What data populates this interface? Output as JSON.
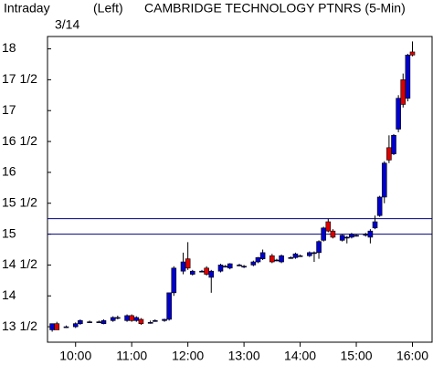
{
  "chart_data": {
    "type": "candlestick",
    "title": "CAMBRIDGE TECHNOLOGY PTNRS  (5-Min)",
    "period": "Intraday",
    "date": "3/14",
    "axis_side": "(Left)",
    "up_color": "#0000cc",
    "down_color": "#dd0000",
    "reference_color": "#000080",
    "reference_lines": [
      15.25,
      15
    ],
    "xlim": [
      570,
      981
    ],
    "ylim": [
      13.25,
      18.2
    ],
    "xticks": [
      {
        "value": 600,
        "label": "10:00"
      },
      {
        "value": 660,
        "label": "11:00"
      },
      {
        "value": 720,
        "label": "12:00"
      },
      {
        "value": 780,
        "label": "13:00"
      },
      {
        "value": 840,
        "label": "14:00"
      },
      {
        "value": 900,
        "label": "15:00"
      },
      {
        "value": 960,
        "label": "16:00"
      }
    ],
    "yticks": [
      {
        "value": 13.5,
        "label": "13 1/2"
      },
      14,
      {
        "value": 14.5,
        "label": "14 1/2"
      },
      15,
      {
        "value": 15.5,
        "label": "15 1/2"
      },
      16,
      {
        "value": 16.5,
        "label": "16 1/2"
      },
      17,
      {
        "value": 17.5,
        "label": "17 1/2"
      },
      18
    ],
    "x": [
      575,
      580,
      590,
      600,
      605,
      615,
      625,
      630,
      640,
      645,
      655,
      660,
      665,
      670,
      680,
      685,
      695,
      700,
      705,
      715,
      720,
      725,
      735,
      740,
      745,
      755,
      760,
      765,
      775,
      780,
      790,
      795,
      800,
      810,
      815,
      820,
      830,
      835,
      840,
      850,
      855,
      860,
      865,
      870,
      875,
      885,
      890,
      895,
      900,
      910,
      915,
      920,
      925,
      930,
      935,
      940,
      945,
      950,
      955,
      960
    ],
    "open": [
      13.45,
      13.55,
      13.5,
      13.5,
      13.55,
      13.58,
      13.58,
      13.55,
      13.6,
      13.65,
      13.6,
      13.68,
      13.6,
      13.62,
      13.57,
      13.6,
      13.6,
      13.62,
      14.05,
      14.4,
      14.6,
      14.35,
      14.4,
      14.45,
      14.3,
      14.4,
      14.48,
      14.45,
      14.5,
      14.48,
      14.5,
      14.55,
      14.6,
      14.65,
      14.58,
      14.55,
      14.62,
      14.62,
      14.65,
      14.65,
      14.7,
      14.7,
      14.9,
      15.2,
      15.05,
      14.9,
      14.95,
      14.95,
      14.98,
      14.98,
      14.95,
      15.1,
      15.3,
      15.6,
      16.4,
      16.3,
      16.7,
      17.5,
      17.2,
      17.95
    ],
    "high": [
      13.55,
      13.58,
      13.52,
      13.57,
      13.62,
      13.6,
      13.6,
      13.62,
      13.67,
      13.68,
      13.7,
      13.7,
      13.67,
      13.64,
      13.6,
      13.62,
      13.63,
      14.05,
      14.48,
      14.7,
      14.87,
      14.42,
      14.42,
      14.48,
      14.42,
      14.52,
      14.5,
      14.53,
      14.52,
      14.5,
      14.57,
      14.63,
      14.75,
      14.68,
      14.6,
      14.67,
      14.64,
      14.7,
      14.67,
      14.72,
      14.72,
      14.9,
      15.12,
      15.25,
      15.08,
      15.0,
      14.97,
      15.02,
      15.0,
      15.02,
      15.08,
      15.3,
      15.62,
      16.18,
      16.6,
      16.62,
      17.25,
      17.6,
      17.92,
      18.12
    ],
    "low": [
      13.42,
      13.45,
      13.48,
      13.48,
      13.53,
      13.56,
      13.56,
      13.54,
      13.58,
      13.62,
      13.58,
      13.58,
      13.58,
      13.53,
      13.55,
      13.58,
      13.58,
      13.6,
      14.0,
      14.35,
      14.42,
      14.33,
      14.38,
      14.33,
      14.05,
      14.38,
      14.46,
      14.43,
      14.48,
      14.45,
      14.48,
      14.53,
      14.58,
      14.53,
      14.56,
      14.53,
      14.6,
      14.6,
      14.63,
      14.63,
      14.55,
      14.6,
      14.88,
      15.03,
      14.93,
      14.88,
      14.85,
      14.93,
      14.96,
      14.96,
      14.85,
      15.08,
      15.28,
      15.5,
      16.15,
      16.28,
      16.65,
      17.05,
      17.15,
      17.88
    ],
    "close": [
      13.55,
      13.45,
      13.5,
      13.55,
      13.6,
      13.58,
      13.58,
      13.6,
      13.65,
      13.65,
      13.68,
      13.6,
      13.65,
      13.55,
      13.57,
      13.6,
      13.62,
      14.05,
      14.45,
      14.55,
      14.45,
      14.4,
      14.4,
      14.35,
      14.4,
      14.5,
      14.48,
      14.52,
      14.5,
      14.48,
      14.55,
      14.62,
      14.7,
      14.55,
      14.58,
      14.65,
      14.62,
      14.68,
      14.65,
      14.7,
      14.7,
      14.88,
      15.1,
      15.05,
      14.95,
      14.98,
      14.95,
      15.0,
      14.98,
      15.0,
      15.05,
      15.2,
      15.6,
      16.15,
      16.2,
      16.6,
      17.2,
      17.1,
      17.9,
      17.9
    ]
  }
}
